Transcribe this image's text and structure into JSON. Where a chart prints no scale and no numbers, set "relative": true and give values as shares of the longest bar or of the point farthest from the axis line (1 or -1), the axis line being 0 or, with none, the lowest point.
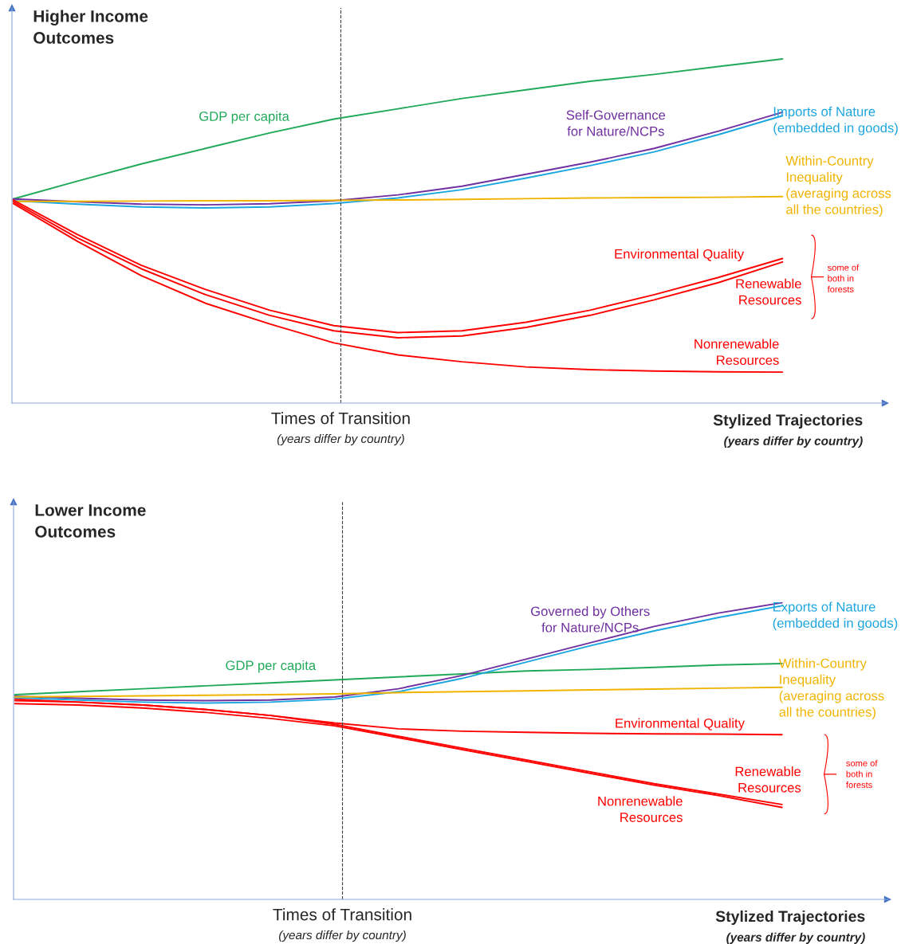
{
  "chart_data": [
    {
      "type": "line",
      "relative": true,
      "title": "Higher Income\nOutcomes",
      "xlabel": "Stylized Trajectories\n(years differ by country)",
      "categories": [
        null,
        null,
        null,
        null,
        null,
        null,
        null,
        null,
        null,
        null,
        null,
        null,
        null
      ],
      "annotations": [
        "Times of Transition\n(years differ by country)",
        "some of\nboth in\nforests"
      ],
      "legend": false,
      "marker": "none",
      "line_style": "solid",
      "series": [
        {
          "name": "GDP per capita",
          "color": "#21a95a",
          "values": [
            0.593,
            0.645,
            0.695,
            0.74,
            0.785,
            0.825,
            0.855,
            0.885,
            0.91,
            0.935,
            0.955,
            0.978,
            1.0
          ]
        },
        {
          "name": "Self-Governance\nfor Nature/NCPs",
          "color": "#7030a0",
          "values": [
            0.593,
            0.585,
            0.578,
            0.576,
            0.579,
            0.588,
            0.605,
            0.63,
            0.665,
            0.7,
            0.74,
            0.79,
            0.845
          ]
        },
        {
          "name": "Imports of Nature\n(embedded in goods)",
          "color": "#1ca6e0",
          "values": [
            0.588,
            0.578,
            0.57,
            0.567,
            0.57,
            0.58,
            0.596,
            0.62,
            0.654,
            0.69,
            0.73,
            0.78,
            0.835
          ]
        },
        {
          "name": "Within-Country\nInequality\n(averaging across\nall the countries)",
          "color": "#f0b400",
          "values": [
            0.586,
            0.586,
            0.587,
            0.588,
            0.588,
            0.589,
            0.59,
            0.592,
            0.594,
            0.596,
            0.597,
            0.598,
            0.6
          ]
        },
        {
          "name": "Environmental Quality",
          "color": "#ff0000",
          "values": [
            0.59,
            0.49,
            0.4,
            0.33,
            0.27,
            0.225,
            0.205,
            0.21,
            0.235,
            0.27,
            0.315,
            0.365,
            0.42
          ]
        },
        {
          "name": "Renewable\nResources",
          "color": "#ff0000",
          "values": [
            0.585,
            0.48,
            0.39,
            0.315,
            0.255,
            0.21,
            0.19,
            0.195,
            0.22,
            0.255,
            0.3,
            0.35,
            0.41
          ]
        },
        {
          "name": "Nonrenewable\nResources",
          "color": "#ff0000",
          "values": [
            0.58,
            0.47,
            0.37,
            0.29,
            0.23,
            0.175,
            0.14,
            0.12,
            0.105,
            0.097,
            0.093,
            0.091,
            0.09
          ]
        }
      ]
    },
    {
      "type": "line",
      "relative": true,
      "title": "Lower Income\nOutcomes",
      "xlabel": "Stylized Trajectories\n(years differ by country)",
      "categories": [
        null,
        null,
        null,
        null,
        null,
        null,
        null,
        null,
        null,
        null,
        null,
        null,
        null
      ],
      "annotations": [
        "Times of Transition\n(years differ by country)",
        "some of\nboth in\nforests"
      ],
      "legend": false,
      "marker": "none",
      "line_style": "solid",
      "series": [
        {
          "name": "GDP per capita",
          "color": "#21a95a",
          "values": [
            0.69,
            0.7,
            0.71,
            0.72,
            0.73,
            0.74,
            0.75,
            0.76,
            0.77,
            0.775,
            0.782,
            0.79,
            0.795
          ]
        },
        {
          "name": "Governed by Others\nfor Nature/NCPs",
          "color": "#7030a0",
          "values": [
            0.685,
            0.678,
            0.672,
            0.67,
            0.672,
            0.682,
            0.71,
            0.755,
            0.81,
            0.865,
            0.92,
            0.965,
            1.0
          ]
        },
        {
          "name": "Exports of Nature\n(embedded in goods)",
          "color": "#1ca6e0",
          "values": [
            0.68,
            0.672,
            0.665,
            0.662,
            0.665,
            0.675,
            0.7,
            0.745,
            0.8,
            0.855,
            0.905,
            0.95,
            0.99
          ]
        },
        {
          "name": "Within-Country\nInequality\n(averaging across\nall the countries)",
          "color": "#f0b400",
          "values": [
            0.683,
            0.684,
            0.686,
            0.688,
            0.69,
            0.693,
            0.697,
            0.7,
            0.703,
            0.706,
            0.709,
            0.712,
            0.715
          ]
        },
        {
          "name": "Environmental Quality",
          "color": "#ff0000",
          "values": [
            0.67,
            0.665,
            0.655,
            0.64,
            0.62,
            0.595,
            0.575,
            0.567,
            0.563,
            0.56,
            0.558,
            0.557,
            0.555
          ]
        },
        {
          "name": "Renewable\nResources",
          "color": "#ff0000",
          "values": [
            0.675,
            0.665,
            0.655,
            0.64,
            0.62,
            0.59,
            0.55,
            0.51,
            0.47,
            0.43,
            0.39,
            0.355,
            0.32
          ]
        },
        {
          "name": "Nonrenewable\nResources",
          "color": "#ff0000",
          "values": [
            0.66,
            0.655,
            0.645,
            0.63,
            0.61,
            0.585,
            0.545,
            0.505,
            0.465,
            0.425,
            0.385,
            0.35,
            0.31
          ]
        }
      ]
    }
  ]
}
